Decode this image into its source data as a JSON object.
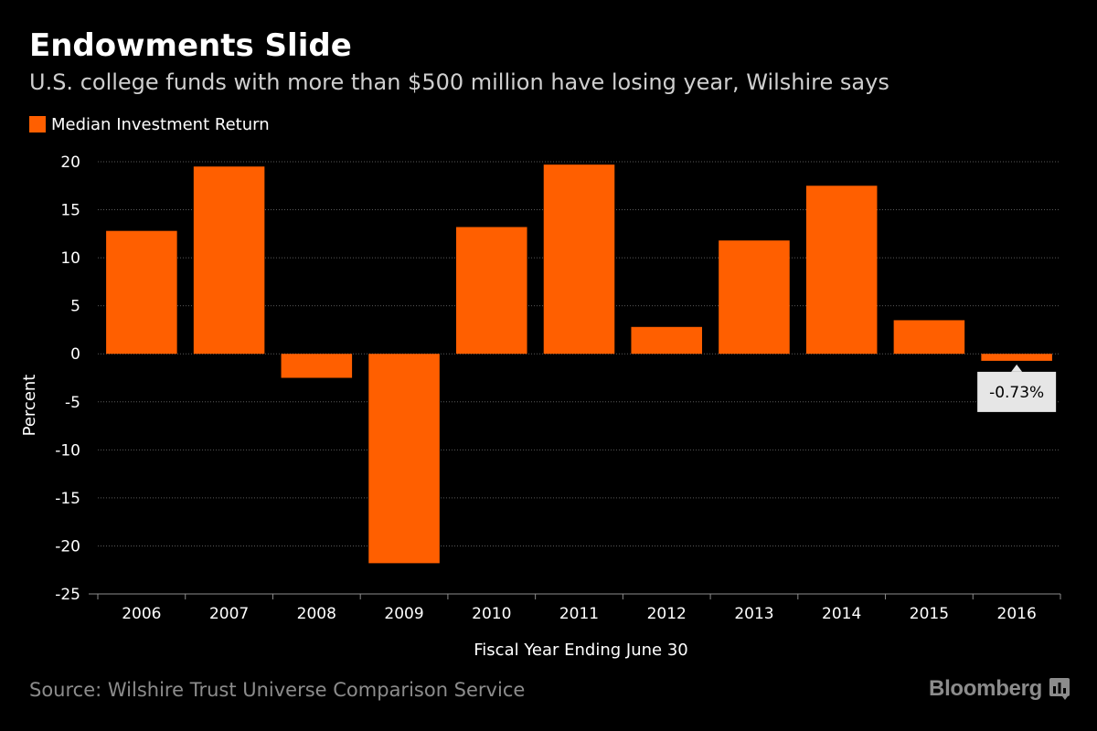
{
  "title": "Endowments Slide",
  "subtitle": "U.S. college funds with more than $500 million have losing year, Wilshire says",
  "legend": {
    "label": "Median Investment Return",
    "color": "#ff5f00"
  },
  "source": "Source: Wilshire Trust Universe Comparison Service",
  "brand": {
    "name": "Bloomberg",
    "icon": "bloomberg-chart-icon"
  },
  "colors": {
    "bar": "#ff5f00",
    "background": "#000000",
    "callout_bg": "#e6e6e6"
  },
  "chart_data": {
    "type": "bar",
    "title": "Endowments Slide",
    "subtitle": "U.S. college funds with more than $500 million have losing year, Wilshire says",
    "xlabel": "Fiscal Year Ending June 30",
    "ylabel": "Percent",
    "categories": [
      "2006",
      "2007",
      "2008",
      "2009",
      "2010",
      "2011",
      "2012",
      "2013",
      "2014",
      "2015",
      "2016"
    ],
    "series": [
      {
        "name": "Median Investment Return",
        "values": [
          12.8,
          19.5,
          -2.5,
          -21.8,
          13.2,
          19.7,
          2.8,
          11.8,
          17.5,
          3.5,
          -0.73
        ]
      }
    ],
    "ylim": [
      -25,
      20
    ],
    "yticks": [
      20,
      15,
      10,
      5,
      0,
      -5,
      -10,
      -15,
      -20,
      -25
    ],
    "grid": true,
    "legend_position": "top-left",
    "annotations": [
      {
        "category": "2016",
        "value": -0.73,
        "text": "-0.73%"
      }
    ]
  }
}
